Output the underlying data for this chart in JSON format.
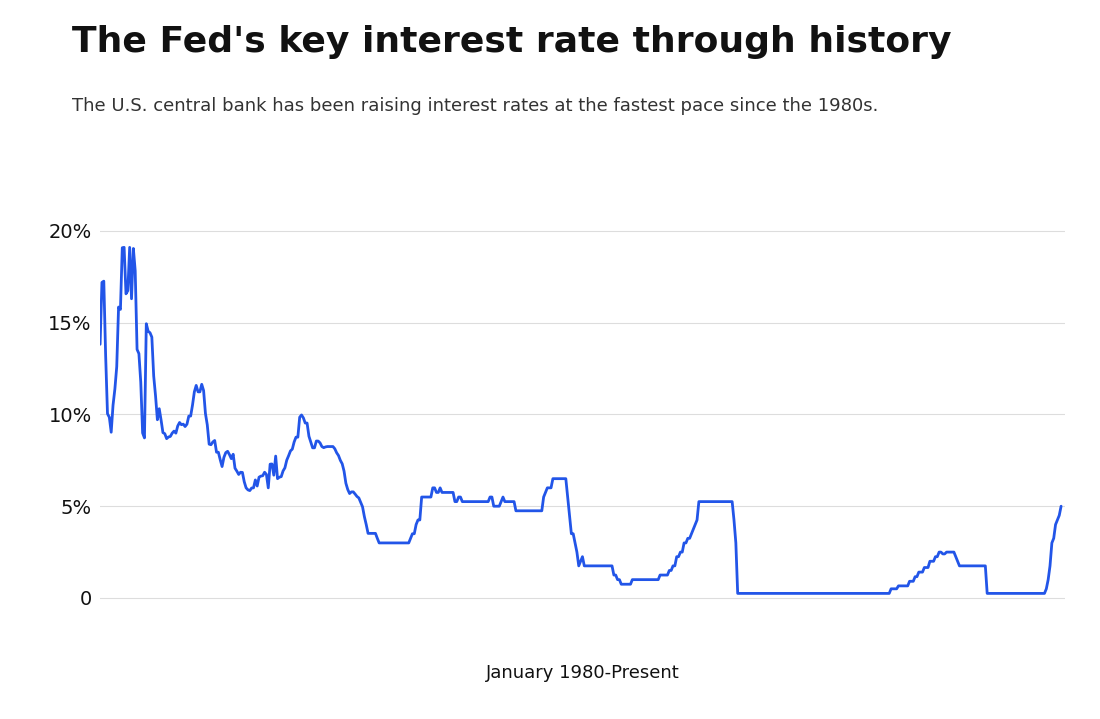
{
  "title": "The Fed's key interest rate through history",
  "subtitle": "The U.S. central bank has been raising interest rates at the fastest pace since the 1980s.",
  "xlabel": "January 1980-Present",
  "line_color": "#2255e8",
  "background_color": "#ffffff",
  "title_fontsize": 26,
  "subtitle_fontsize": 13,
  "xlabel_fontsize": 13,
  "ytick_labels": [
    "0",
    "5%",
    "10%",
    "15%",
    "20%"
  ],
  "ytick_values": [
    0,
    5,
    10,
    15,
    20
  ],
  "ylim": [
    -1.5,
    22
  ],
  "dates_years": [
    1980.0,
    1980.083,
    1980.167,
    1980.25,
    1980.333,
    1980.417,
    1980.5,
    1980.583,
    1980.667,
    1980.75,
    1980.833,
    1980.917,
    1981.0,
    1981.083,
    1981.167,
    1981.25,
    1981.333,
    1981.417,
    1981.5,
    1981.583,
    1981.667,
    1981.75,
    1981.833,
    1981.917,
    1982.0,
    1982.083,
    1982.167,
    1982.25,
    1982.333,
    1982.417,
    1982.5,
    1982.583,
    1982.667,
    1982.75,
    1982.833,
    1982.917,
    1983.0,
    1983.083,
    1983.167,
    1983.25,
    1983.333,
    1983.417,
    1983.5,
    1983.583,
    1983.667,
    1983.75,
    1983.833,
    1983.917,
    1984.0,
    1984.083,
    1984.167,
    1984.25,
    1984.333,
    1984.417,
    1984.5,
    1984.583,
    1984.667,
    1984.75,
    1984.833,
    1984.917,
    1985.0,
    1985.083,
    1985.167,
    1985.25,
    1985.333,
    1985.417,
    1985.5,
    1985.583,
    1985.667,
    1985.75,
    1985.833,
    1985.917,
    1986.0,
    1986.083,
    1986.167,
    1986.25,
    1986.333,
    1986.417,
    1986.5,
    1986.583,
    1986.667,
    1986.75,
    1986.833,
    1986.917,
    1987.0,
    1987.083,
    1987.167,
    1987.25,
    1987.333,
    1987.417,
    1987.5,
    1987.583,
    1987.667,
    1987.75,
    1987.833,
    1987.917,
    1988.0,
    1988.083,
    1988.167,
    1988.25,
    1988.333,
    1988.417,
    1988.5,
    1988.583,
    1988.667,
    1988.75,
    1988.833,
    1988.917,
    1989.0,
    1989.083,
    1989.167,
    1989.25,
    1989.333,
    1989.417,
    1989.5,
    1989.583,
    1989.667,
    1989.75,
    1989.833,
    1989.917,
    1990.0,
    1990.083,
    1990.167,
    1990.25,
    1990.333,
    1990.417,
    1990.5,
    1990.583,
    1990.667,
    1990.75,
    1990.833,
    1990.917,
    1991.0,
    1991.083,
    1991.167,
    1991.25,
    1991.333,
    1991.417,
    1991.5,
    1991.583,
    1991.667,
    1991.75,
    1991.833,
    1991.917,
    1992.0,
    1992.083,
    1992.167,
    1992.25,
    1992.333,
    1992.417,
    1992.5,
    1992.583,
    1992.667,
    1992.75,
    1992.833,
    1992.917,
    1993.0,
    1993.083,
    1993.167,
    1993.25,
    1993.333,
    1993.417,
    1993.5,
    1993.583,
    1993.667,
    1993.75,
    1993.833,
    1993.917,
    1994.0,
    1994.083,
    1994.167,
    1994.25,
    1994.333,
    1994.417,
    1994.5,
    1994.583,
    1994.667,
    1994.75,
    1994.833,
    1994.917,
    1995.0,
    1995.083,
    1995.167,
    1995.25,
    1995.333,
    1995.417,
    1995.5,
    1995.583,
    1995.667,
    1995.75,
    1995.833,
    1995.917,
    1996.0,
    1996.083,
    1996.167,
    1996.25,
    1996.333,
    1996.417,
    1996.5,
    1996.583,
    1996.667,
    1996.75,
    1996.833,
    1996.917,
    1997.0,
    1997.083,
    1997.167,
    1997.25,
    1997.333,
    1997.417,
    1997.5,
    1997.583,
    1997.667,
    1997.75,
    1997.833,
    1997.917,
    1998.0,
    1998.083,
    1998.167,
    1998.25,
    1998.333,
    1998.417,
    1998.5,
    1998.583,
    1998.667,
    1998.75,
    1998.833,
    1998.917,
    1999.0,
    1999.083,
    1999.167,
    1999.25,
    1999.333,
    1999.417,
    1999.5,
    1999.583,
    1999.667,
    1999.75,
    1999.833,
    1999.917,
    2000.0,
    2000.083,
    2000.167,
    2000.25,
    2000.333,
    2000.417,
    2000.5,
    2000.583,
    2000.667,
    2000.75,
    2000.833,
    2000.917,
    2001.0,
    2001.083,
    2001.167,
    2001.25,
    2001.333,
    2001.417,
    2001.5,
    2001.583,
    2001.667,
    2001.75,
    2001.833,
    2001.917,
    2002.0,
    2002.083,
    2002.167,
    2002.25,
    2002.333,
    2002.417,
    2002.5,
    2002.583,
    2002.667,
    2002.75,
    2002.833,
    2002.917,
    2003.0,
    2003.083,
    2003.167,
    2003.25,
    2003.333,
    2003.417,
    2003.5,
    2003.583,
    2003.667,
    2003.75,
    2003.833,
    2003.917,
    2004.0,
    2004.083,
    2004.167,
    2004.25,
    2004.333,
    2004.417,
    2004.5,
    2004.583,
    2004.667,
    2004.75,
    2004.833,
    2004.917,
    2005.0,
    2005.083,
    2005.167,
    2005.25,
    2005.333,
    2005.417,
    2005.5,
    2005.583,
    2005.667,
    2005.75,
    2005.833,
    2005.917,
    2006.0,
    2006.083,
    2006.167,
    2006.25,
    2006.333,
    2006.417,
    2006.5,
    2006.583,
    2006.667,
    2006.75,
    2006.833,
    2006.917,
    2007.0,
    2007.083,
    2007.167,
    2007.25,
    2007.333,
    2007.417,
    2007.5,
    2007.583,
    2007.667,
    2007.75,
    2007.833,
    2007.917,
    2008.0,
    2008.083,
    2008.167,
    2008.25,
    2008.333,
    2008.417,
    2008.5,
    2008.583,
    2008.667,
    2008.75,
    2008.833,
    2008.917,
    2009.0,
    2009.083,
    2009.167,
    2009.25,
    2009.333,
    2009.417,
    2009.5,
    2009.583,
    2009.667,
    2009.75,
    2009.833,
    2009.917,
    2010.0,
    2010.083,
    2010.167,
    2010.25,
    2010.333,
    2010.417,
    2010.5,
    2010.583,
    2010.667,
    2010.75,
    2010.833,
    2010.917,
    2011.0,
    2011.083,
    2011.167,
    2011.25,
    2011.333,
    2011.417,
    2011.5,
    2011.583,
    2011.667,
    2011.75,
    2011.833,
    2011.917,
    2012.0,
    2012.083,
    2012.167,
    2012.25,
    2012.333,
    2012.417,
    2012.5,
    2012.583,
    2012.667,
    2012.75,
    2012.833,
    2012.917,
    2013.0,
    2013.083,
    2013.167,
    2013.25,
    2013.333,
    2013.417,
    2013.5,
    2013.583,
    2013.667,
    2013.75,
    2013.833,
    2013.917,
    2014.0,
    2014.083,
    2014.167,
    2014.25,
    2014.333,
    2014.417,
    2014.5,
    2014.583,
    2014.667,
    2014.75,
    2014.833,
    2014.917,
    2015.0,
    2015.083,
    2015.167,
    2015.25,
    2015.333,
    2015.417,
    2015.5,
    2015.583,
    2015.667,
    2015.75,
    2015.833,
    2015.917,
    2016.0,
    2016.083,
    2016.167,
    2016.25,
    2016.333,
    2016.417,
    2016.5,
    2016.583,
    2016.667,
    2016.75,
    2016.833,
    2016.917,
    2017.0,
    2017.083,
    2017.167,
    2017.25,
    2017.333,
    2017.417,
    2017.5,
    2017.583,
    2017.667,
    2017.75,
    2017.833,
    2017.917,
    2018.0,
    2018.083,
    2018.167,
    2018.25,
    2018.333,
    2018.417,
    2018.5,
    2018.583,
    2018.667,
    2018.75,
    2018.833,
    2018.917,
    2019.0,
    2019.083,
    2019.167,
    2019.25,
    2019.333,
    2019.417,
    2019.5,
    2019.583,
    2019.667,
    2019.75,
    2019.833,
    2019.917,
    2020.0,
    2020.083,
    2020.167,
    2020.25,
    2020.333,
    2020.417,
    2020.5,
    2020.583,
    2020.667,
    2020.75,
    2020.833,
    2020.917,
    2021.0,
    2021.083,
    2021.167,
    2021.25,
    2021.333,
    2021.417,
    2021.5,
    2021.583,
    2021.667,
    2021.75,
    2021.833,
    2021.917,
    2022.0,
    2022.083,
    2022.167,
    2022.25,
    2022.333,
    2022.417,
    2022.5,
    2022.583,
    2022.667,
    2022.75,
    2022.833,
    2022.917,
    2023.0,
    2023.083,
    2023.167,
    2023.25,
    2023.333
  ],
  "rates": [
    13.82,
    17.19,
    17.26,
    13.2,
    10.04,
    9.84,
    9.03,
    10.5,
    11.39,
    12.6,
    15.85,
    15.72,
    19.08,
    19.1,
    16.57,
    16.74,
    19.1,
    16.3,
    19.04,
    17.82,
    13.54,
    13.31,
    11.77,
    8.99,
    8.72,
    14.94,
    14.53,
    14.45,
    14.21,
    12.09,
    11.01,
    9.71,
    10.31,
    9.69,
    9.01,
    8.95,
    8.68,
    8.77,
    8.8,
    8.98,
    9.09,
    8.98,
    9.37,
    9.56,
    9.44,
    9.47,
    9.34,
    9.47,
    9.91,
    9.91,
    10.51,
    11.23,
    11.58,
    11.23,
    11.23,
    11.64,
    11.3,
    10.05,
    9.43,
    8.38,
    8.35,
    8.5,
    8.58,
    7.94,
    7.94,
    7.53,
    7.16,
    7.66,
    7.92,
    7.99,
    7.81,
    7.59,
    7.83,
    7.07,
    6.91,
    6.73,
    6.85,
    6.84,
    6.33,
    6.0,
    5.89,
    5.85,
    5.99,
    6.0,
    6.43,
    6.1,
    6.58,
    6.64,
    6.66,
    6.85,
    6.73,
    6.0,
    7.29,
    7.3,
    6.69,
    7.73,
    6.5,
    6.58,
    6.61,
    6.92,
    7.09,
    7.51,
    7.75,
    8.01,
    8.11,
    8.5,
    8.76,
    8.76,
    9.85,
    9.97,
    9.81,
    9.53,
    9.53,
    8.81,
    8.5,
    8.18,
    8.18,
    8.55,
    8.55,
    8.45,
    8.25,
    8.19,
    8.23,
    8.25,
    8.25,
    8.25,
    8.25,
    8.13,
    7.91,
    7.76,
    7.5,
    7.31,
    6.91,
    6.25,
    5.91,
    5.69,
    5.78,
    5.78,
    5.66,
    5.53,
    5.45,
    5.21,
    4.97,
    4.43,
    4.0,
    3.52,
    3.52,
    3.52,
    3.52,
    3.52,
    3.25,
    3.0,
    3.0,
    3.0,
    3.0,
    3.0,
    3.0,
    3.0,
    3.0,
    3.0,
    3.0,
    3.0,
    3.0,
    3.0,
    3.0,
    3.0,
    3.0,
    3.0,
    3.25,
    3.5,
    3.5,
    4.0,
    4.25,
    4.25,
    5.5,
    5.5,
    5.5,
    5.5,
    5.5,
    5.5,
    6.0,
    6.0,
    5.75,
    5.75,
    6.0,
    5.75,
    5.75,
    5.75,
    5.75,
    5.75,
    5.75,
    5.75,
    5.25,
    5.25,
    5.5,
    5.5,
    5.25,
    5.25,
    5.25,
    5.25,
    5.25,
    5.25,
    5.25,
    5.25,
    5.25,
    5.25,
    5.25,
    5.25,
    5.25,
    5.25,
    5.25,
    5.5,
    5.5,
    5.0,
    5.0,
    5.0,
    5.0,
    5.25,
    5.5,
    5.25,
    5.25,
    5.25,
    5.25,
    5.25,
    5.25,
    4.75,
    4.75,
    4.75,
    4.75,
    4.75,
    4.75,
    4.75,
    4.75,
    4.75,
    4.75,
    4.75,
    4.75,
    4.75,
    4.75,
    4.75,
    5.5,
    5.75,
    6.0,
    6.0,
    6.0,
    6.5,
    6.5,
    6.5,
    6.5,
    6.5,
    6.5,
    6.5,
    6.5,
    5.5,
    4.5,
    3.5,
    3.5,
    3.0,
    2.5,
    1.75,
    2.0,
    2.25,
    1.75,
    1.75,
    1.75,
    1.75,
    1.75,
    1.75,
    1.75,
    1.75,
    1.75,
    1.75,
    1.75,
    1.75,
    1.75,
    1.75,
    1.75,
    1.75,
    1.25,
    1.25,
    1.0,
    1.0,
    0.75,
    0.75,
    0.75,
    0.75,
    0.75,
    0.75,
    1.0,
    1.0,
    1.0,
    1.0,
    1.0,
    1.0,
    1.0,
    1.0,
    1.0,
    1.0,
    1.0,
    1.0,
    1.0,
    1.0,
    1.0,
    1.25,
    1.25,
    1.25,
    1.25,
    1.25,
    1.5,
    1.5,
    1.75,
    1.75,
    2.25,
    2.25,
    2.5,
    2.5,
    3.0,
    3.0,
    3.25,
    3.25,
    3.5,
    3.75,
    4.0,
    4.25,
    5.25,
    5.25,
    5.25,
    5.25,
    5.25,
    5.25,
    5.25,
    5.25,
    5.25,
    5.25,
    5.25,
    5.25,
    5.25,
    5.25,
    5.25,
    5.25,
    5.25,
    5.25,
    5.25,
    4.25,
    3.0,
    0.25,
    0.25,
    0.25,
    0.25,
    0.25,
    0.25,
    0.25,
    0.25,
    0.25,
    0.25,
    0.25,
    0.25,
    0.25,
    0.25,
    0.25,
    0.25,
    0.25,
    0.25,
    0.25,
    0.25,
    0.25,
    0.25,
    0.25,
    0.25,
    0.25,
    0.25,
    0.25,
    0.25,
    0.25,
    0.25,
    0.25,
    0.25,
    0.25,
    0.25,
    0.25,
    0.25,
    0.25,
    0.25,
    0.25,
    0.25,
    0.25,
    0.25,
    0.25,
    0.25,
    0.25,
    0.25,
    0.25,
    0.25,
    0.25,
    0.25,
    0.25,
    0.25,
    0.25,
    0.25,
    0.25,
    0.25,
    0.25,
    0.25,
    0.25,
    0.25,
    0.25,
    0.25,
    0.25,
    0.25,
    0.25,
    0.25,
    0.25,
    0.25,
    0.25,
    0.25,
    0.25,
    0.25,
    0.25,
    0.25,
    0.25,
    0.25,
    0.25,
    0.25,
    0.25,
    0.25,
    0.25,
    0.25,
    0.25,
    0.5,
    0.5,
    0.5,
    0.5,
    0.66,
    0.66,
    0.66,
    0.66,
    0.66,
    0.66,
    0.91,
    0.91,
    0.91,
    1.16,
    1.16,
    1.41,
    1.41,
    1.41,
    1.66,
    1.66,
    1.66,
    2.0,
    2.0,
    2.0,
    2.25,
    2.25,
    2.5,
    2.5,
    2.4,
    2.4,
    2.5,
    2.5,
    2.5,
    2.5,
    2.5,
    2.25,
    2.0,
    1.75,
    1.75,
    1.75,
    1.75,
    1.75,
    1.75,
    1.75,
    1.75,
    1.75,
    1.75,
    1.75,
    1.75,
    1.75,
    1.75,
    1.75,
    0.25,
    0.25,
    0.25,
    0.25,
    0.25,
    0.25,
    0.25,
    0.25,
    0.25,
    0.25,
    0.25,
    0.25,
    0.25,
    0.25,
    0.25,
    0.25,
    0.25,
    0.25,
    0.25,
    0.25,
    0.25,
    0.25,
    0.25,
    0.25,
    0.25,
    0.25,
    0.25,
    0.25,
    0.25,
    0.25,
    0.25,
    0.25,
    0.5,
    1.0,
    1.75,
    3.0,
    3.25,
    4.0,
    4.25,
    4.5,
    5.0,
    5.25
  ],
  "xlim": [
    1980,
    2023.5
  ]
}
